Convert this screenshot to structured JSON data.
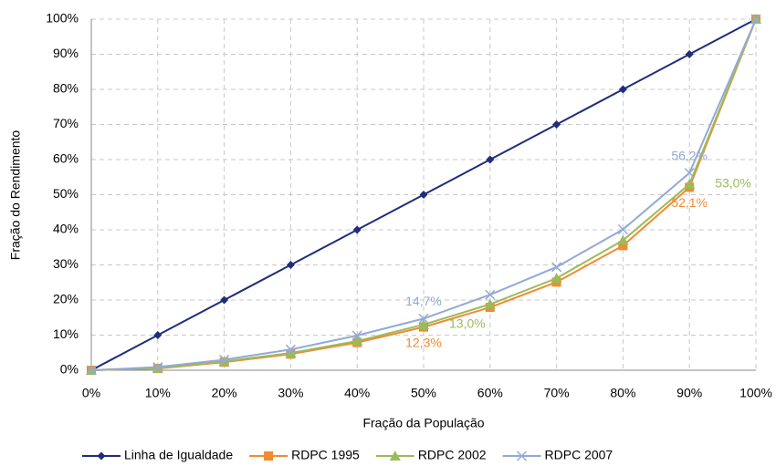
{
  "chart_data": {
    "type": "line",
    "x_label": "Fração da População",
    "y_label": "Fração do Rendimento",
    "x": [
      0,
      10,
      20,
      30,
      40,
      50,
      60,
      70,
      80,
      90,
      100
    ],
    "xlim": [
      0,
      100
    ],
    "ylim": [
      0,
      100
    ],
    "xticks": [
      {
        "value": 0,
        "label": "0%"
      },
      {
        "value": 10,
        "label": "10%"
      },
      {
        "value": 20,
        "label": "20%"
      },
      {
        "value": 30,
        "label": "30%"
      },
      {
        "value": 40,
        "label": "40%"
      },
      {
        "value": 50,
        "label": "50%"
      },
      {
        "value": 60,
        "label": "60%"
      },
      {
        "value": 70,
        "label": "70%"
      },
      {
        "value": 80,
        "label": "80%"
      },
      {
        "value": 90,
        "label": "90%"
      },
      {
        "value": 100,
        "label": "100%"
      }
    ],
    "yticks": [
      {
        "value": 0,
        "label": "0%"
      },
      {
        "value": 10,
        "label": "10%"
      },
      {
        "value": 20,
        "label": "20%"
      },
      {
        "value": 30,
        "label": "30%"
      },
      {
        "value": 40,
        "label": "40%"
      },
      {
        "value": 50,
        "label": "50%"
      },
      {
        "value": 60,
        "label": "60%"
      },
      {
        "value": 70,
        "label": "70%"
      },
      {
        "value": 80,
        "label": "80%"
      },
      {
        "value": 90,
        "label": "90%"
      },
      {
        "value": 100,
        "label": "100%"
      }
    ],
    "grid": true,
    "legend": "bottom",
    "series": [
      {
        "name": "Linha de Igualdade",
        "color": "#1f2d7a",
        "marker": "diamond",
        "values": [
          0,
          10,
          20,
          30,
          40,
          50,
          60,
          70,
          80,
          90,
          100
        ]
      },
      {
        "name": "RDPC 1995",
        "color": "#f28a30",
        "marker": "square",
        "values": [
          0,
          0.5,
          2.3,
          4.6,
          7.9,
          12.3,
          17.9,
          25.1,
          35.5,
          52.1,
          100
        ],
        "value_labels": [
          null,
          null,
          null,
          null,
          null,
          "12,3%",
          null,
          null,
          null,
          "52,1%",
          null
        ]
      },
      {
        "name": "RDPC 2002",
        "color": "#9bbb59",
        "marker": "triangle",
        "values": [
          0,
          0.6,
          2.5,
          4.9,
          8.3,
          13.0,
          18.8,
          26.2,
          37.0,
          53.0,
          100
        ],
        "value_labels": [
          null,
          null,
          null,
          null,
          null,
          "13,0%",
          null,
          null,
          null,
          "53,0%",
          null
        ]
      },
      {
        "name": "RDPC 2007",
        "color": "#93a9d6",
        "marker": "x",
        "values": [
          0,
          0.9,
          3.0,
          5.9,
          9.9,
          14.7,
          21.5,
          29.4,
          40.1,
          56.2,
          100
        ],
        "value_labels": [
          null,
          null,
          null,
          null,
          null,
          "14,7%",
          null,
          null,
          null,
          "56,2%",
          null
        ]
      }
    ]
  }
}
